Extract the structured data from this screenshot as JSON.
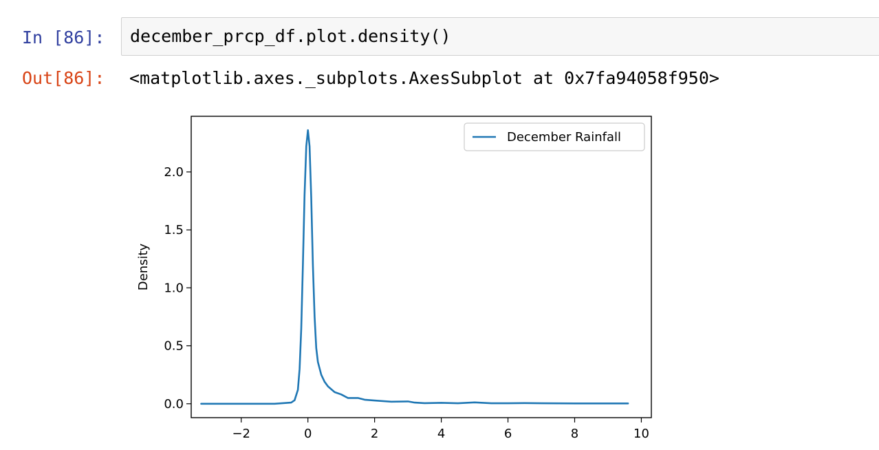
{
  "cell": {
    "in_prompt": "In [86]:",
    "code": "december_prcp_df.plot.density()",
    "out_prompt": "Out[86]:",
    "output_repr": "<matplotlib.axes._subplots.AxesSubplot at 0x7fa94058f950>"
  },
  "chart_data": {
    "type": "line",
    "title": "",
    "xlabel": "",
    "ylabel": "Density",
    "xlim": [
      -3.5,
      10.3
    ],
    "ylim": [
      -0.12,
      2.48
    ],
    "xticks": [
      -2,
      0,
      2,
      4,
      6,
      8,
      10
    ],
    "xtick_labels": [
      "−2",
      "0",
      "2",
      "4",
      "6",
      "8",
      "10"
    ],
    "yticks": [
      0.0,
      0.5,
      1.0,
      1.5,
      2.0
    ],
    "ytick_labels": [
      "0.0",
      "0.5",
      "1.0",
      "1.5",
      "2.0"
    ],
    "grid": false,
    "legend_position": "top-right",
    "line_color": "#1f77b4",
    "series": [
      {
        "name": "December Rainfall",
        "x": [
          -3.2,
          -2.0,
          -1.0,
          -0.5,
          -0.4,
          -0.3,
          -0.25,
          -0.2,
          -0.15,
          -0.1,
          -0.05,
          0.0,
          0.05,
          0.1,
          0.15,
          0.2,
          0.25,
          0.3,
          0.4,
          0.5,
          0.6,
          0.8,
          1.0,
          1.2,
          1.5,
          1.7,
          2.0,
          2.5,
          3.0,
          3.2,
          3.5,
          4.0,
          4.5,
          5.0,
          5.5,
          6.0,
          6.5,
          7.0,
          8.0,
          9.0,
          9.6
        ],
        "y": [
          0.0,
          0.0,
          0.0,
          0.01,
          0.03,
          0.12,
          0.3,
          0.65,
          1.2,
          1.8,
          2.22,
          2.36,
          2.22,
          1.78,
          1.2,
          0.75,
          0.48,
          0.36,
          0.25,
          0.19,
          0.15,
          0.1,
          0.08,
          0.05,
          0.05,
          0.035,
          0.028,
          0.018,
          0.02,
          0.01,
          0.005,
          0.008,
          0.004,
          0.012,
          0.004,
          0.004,
          0.006,
          0.004,
          0.003,
          0.003,
          0.003
        ]
      }
    ]
  }
}
